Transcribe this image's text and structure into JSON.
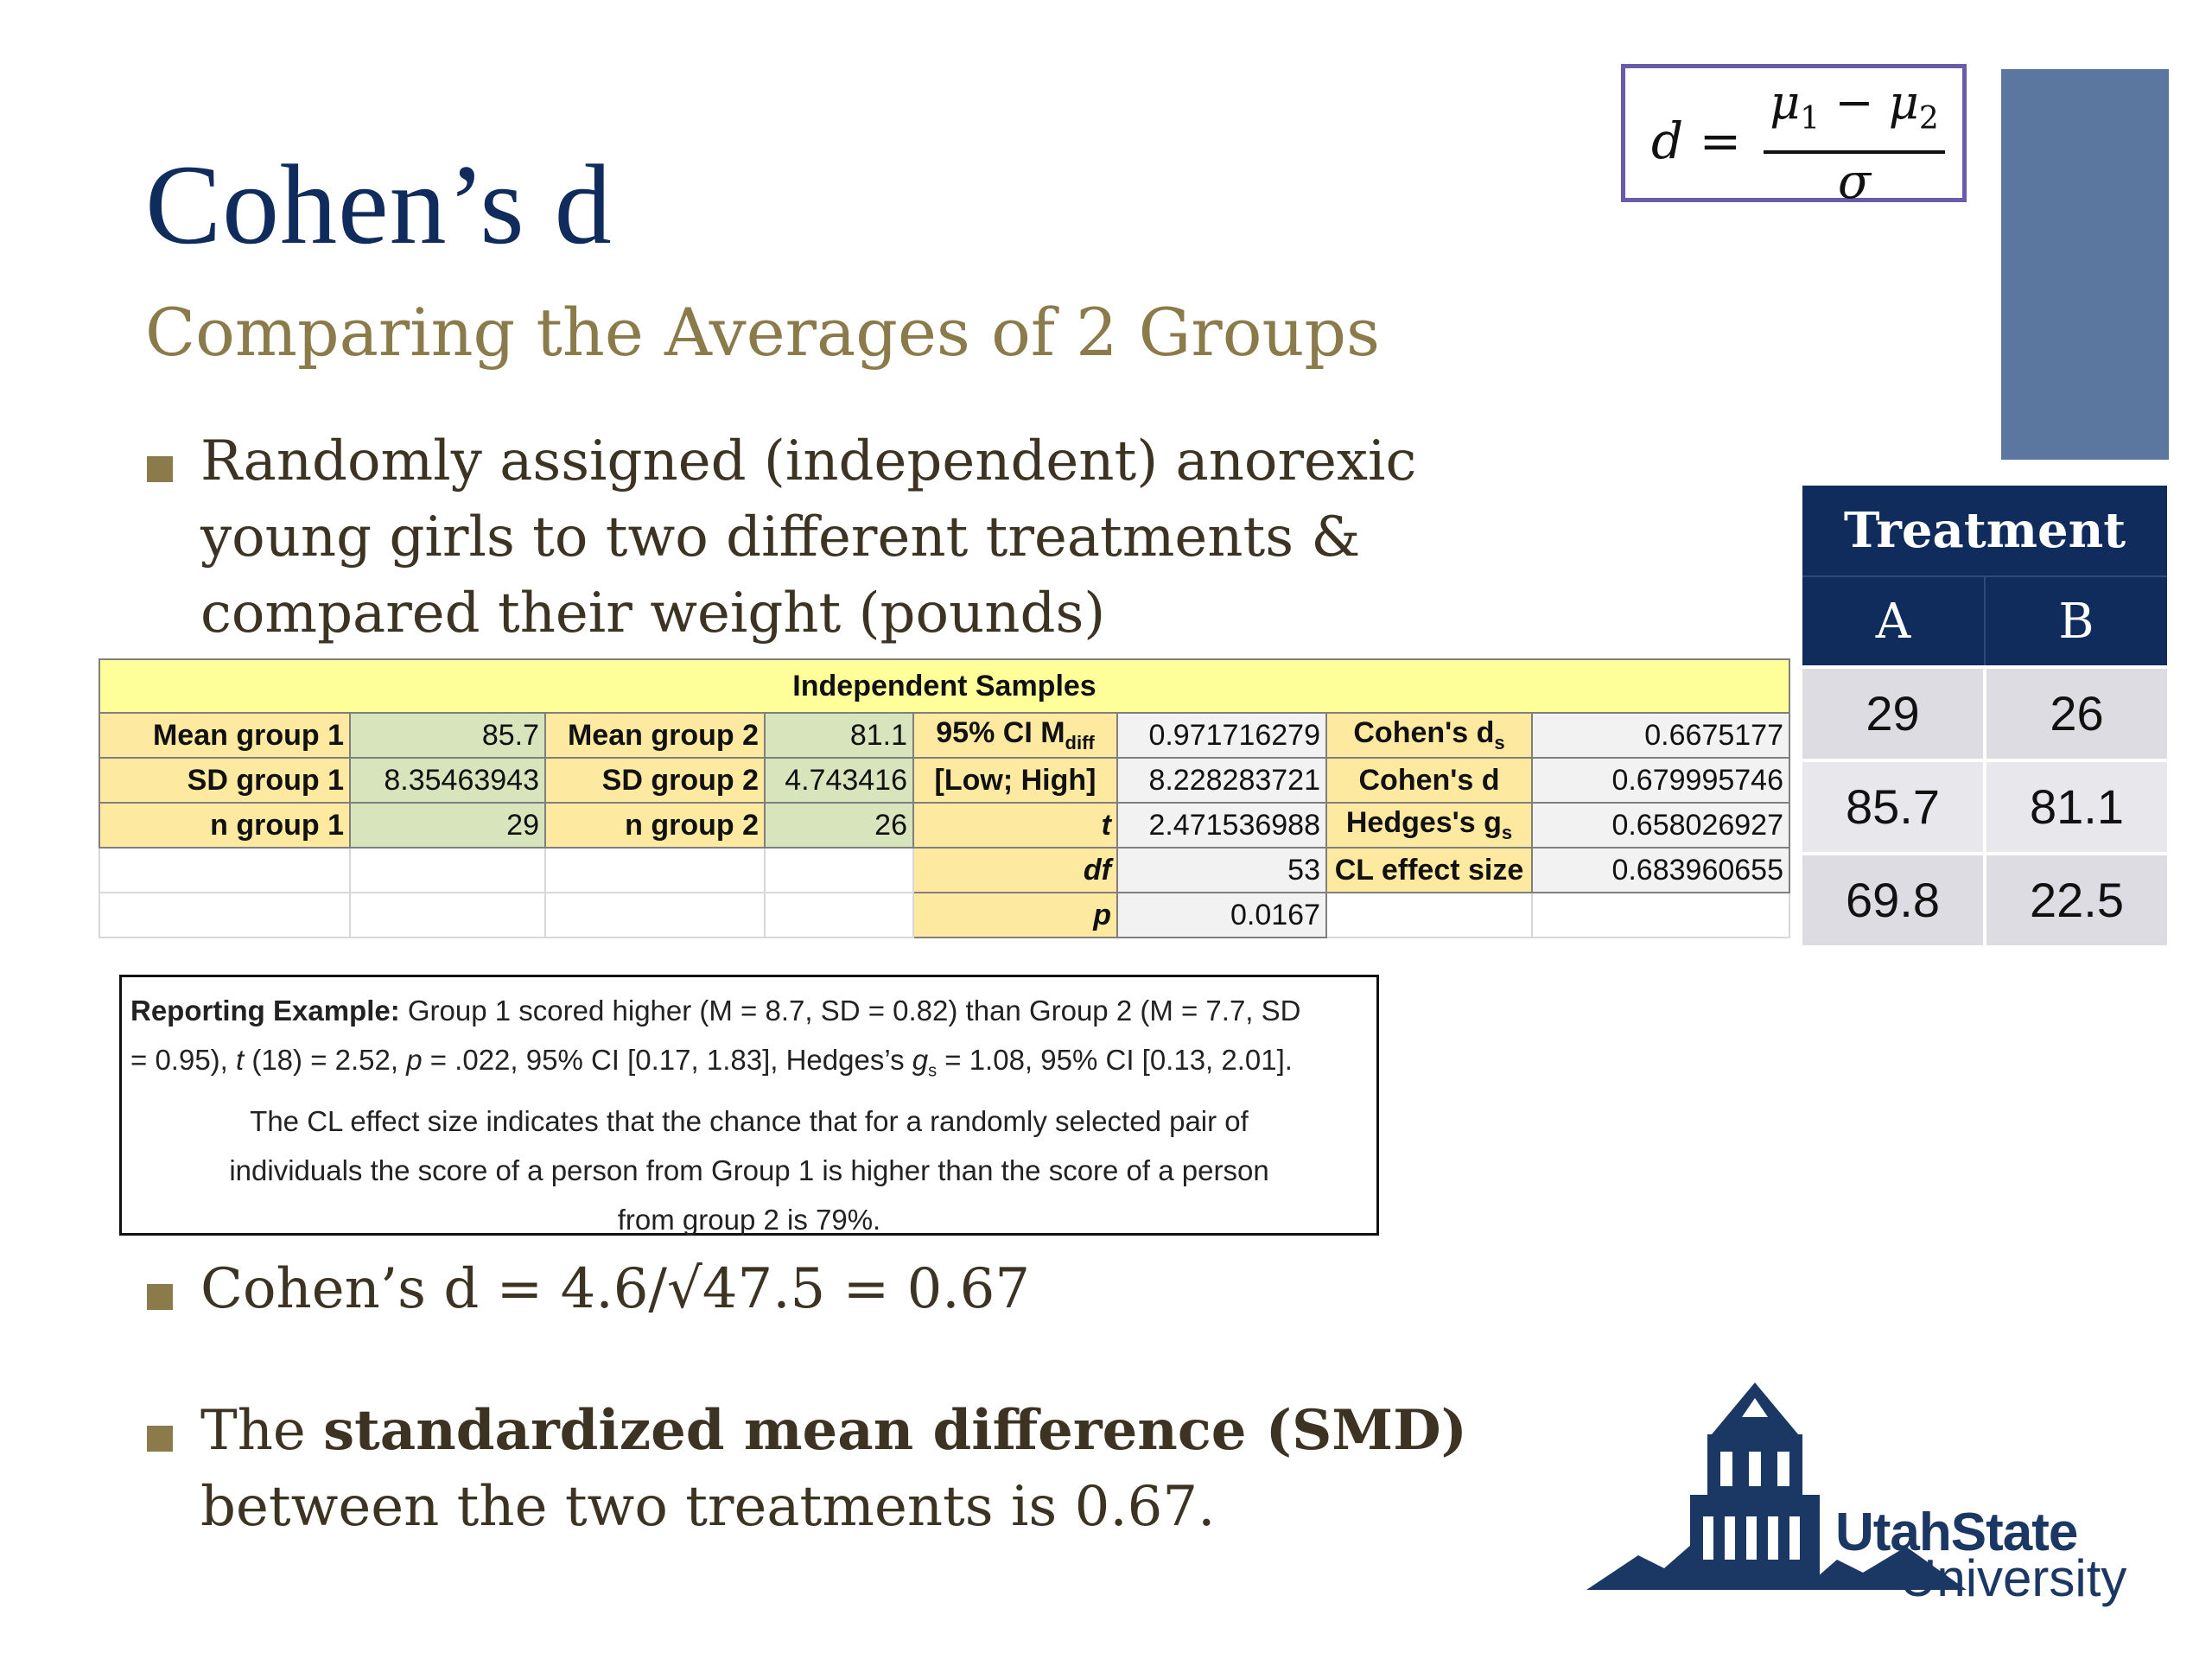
{
  "slide": {
    "title": "Cohen’s d",
    "subtitle": "Comparing the Averages of 2 Groups"
  },
  "formula": {
    "lhs": "d =",
    "mu1": "μ",
    "mu1_sub": "1",
    "minus": " − ",
    "mu2": "μ",
    "mu2_sub": "2",
    "denominator": "σ"
  },
  "bullets": {
    "b1_line1": "Randomly assigned (independent) anorexic",
    "b1_line2": "young girls to two different treatments &",
    "b1_line3": "compared their weight (pounds)",
    "b2": "Cohen’s d = 4.6/√47.5 = 0.67",
    "b3_pre": "The ",
    "b3_bold": "standardized mean difference (SMD)",
    "b3_line2": "between the two treatments is 0.67."
  },
  "treatment_table": {
    "header": "Treatment",
    "col_a": "A",
    "col_b": "B",
    "rows": [
      [
        "29",
        "26"
      ],
      [
        "85.7",
        "81.1"
      ],
      [
        "69.8",
        "22.5"
      ]
    ]
  },
  "excel": {
    "header": "Independent Samples",
    "mean_g1_label": "Mean group 1",
    "mean_g1": "85.7",
    "mean_g2_label": "Mean group 2",
    "mean_g2": "81.1",
    "ci_label": "95% CI M",
    "ci_sub": "diff",
    "ci_low": "0.971716279",
    "cohens_ds_label": "Cohen's d",
    "cohens_ds_sub": "s",
    "cohens_ds": "0.6675177",
    "sd_g1_label": "SD group 1",
    "sd_g1": "8.35463943",
    "sd_g2_label": "SD group 2",
    "sd_g2": "4.743416",
    "ci_bounds_label": "[Low; High]",
    "ci_high": "8.228283721",
    "cohens_d_label": "Cohen's d",
    "cohens_d": "0.679995746",
    "n_g1_label": "n group 1",
    "n_g1": "29",
    "n_g2_label": "n group 2",
    "n_g2": "26",
    "t_label": "t",
    "t": "2.471536988",
    "hedges_label": "Hedges's g",
    "hedges_sub": "s",
    "hedges": "0.658026927",
    "df_label": "df",
    "df": "53",
    "cl_label": "CL effect size",
    "cl": "0.683960655",
    "p_label": "p",
    "p": "0.0167"
  },
  "report": {
    "label": "Reporting Example:",
    "line1": " Group 1 scored higher (M = 8.7, SD = 0.82) than Group 2 (M = 7.7, SD",
    "line2a": "= 0.95), ",
    "t_sym": "t",
    "line2b": " (18) = 2.52, ",
    "p_sym": "p",
    "line2c": " = .022, 95% CI [0.17, 1.83], Hedges’s ",
    "g_sym": "g",
    "g_sub": "s",
    "line2d": " = 1.08, 95% CI [0.13, 2.01].",
    "line3": "The CL effect size indicates that the chance that for a randomly selected pair of",
    "line4": "individuals the score of a person from Group 1 is higher than the score of a person",
    "line5": "from group 2 is 79%."
  },
  "logo": {
    "line1": "UtahState",
    "line2": "University"
  },
  "colors": {
    "title": "#0f2c5c",
    "subtitle": "#8b7a4a",
    "bullet_square": "#8b7a4a",
    "navy": "#0f2c5c",
    "blue_rect": "#5b77a0"
  }
}
